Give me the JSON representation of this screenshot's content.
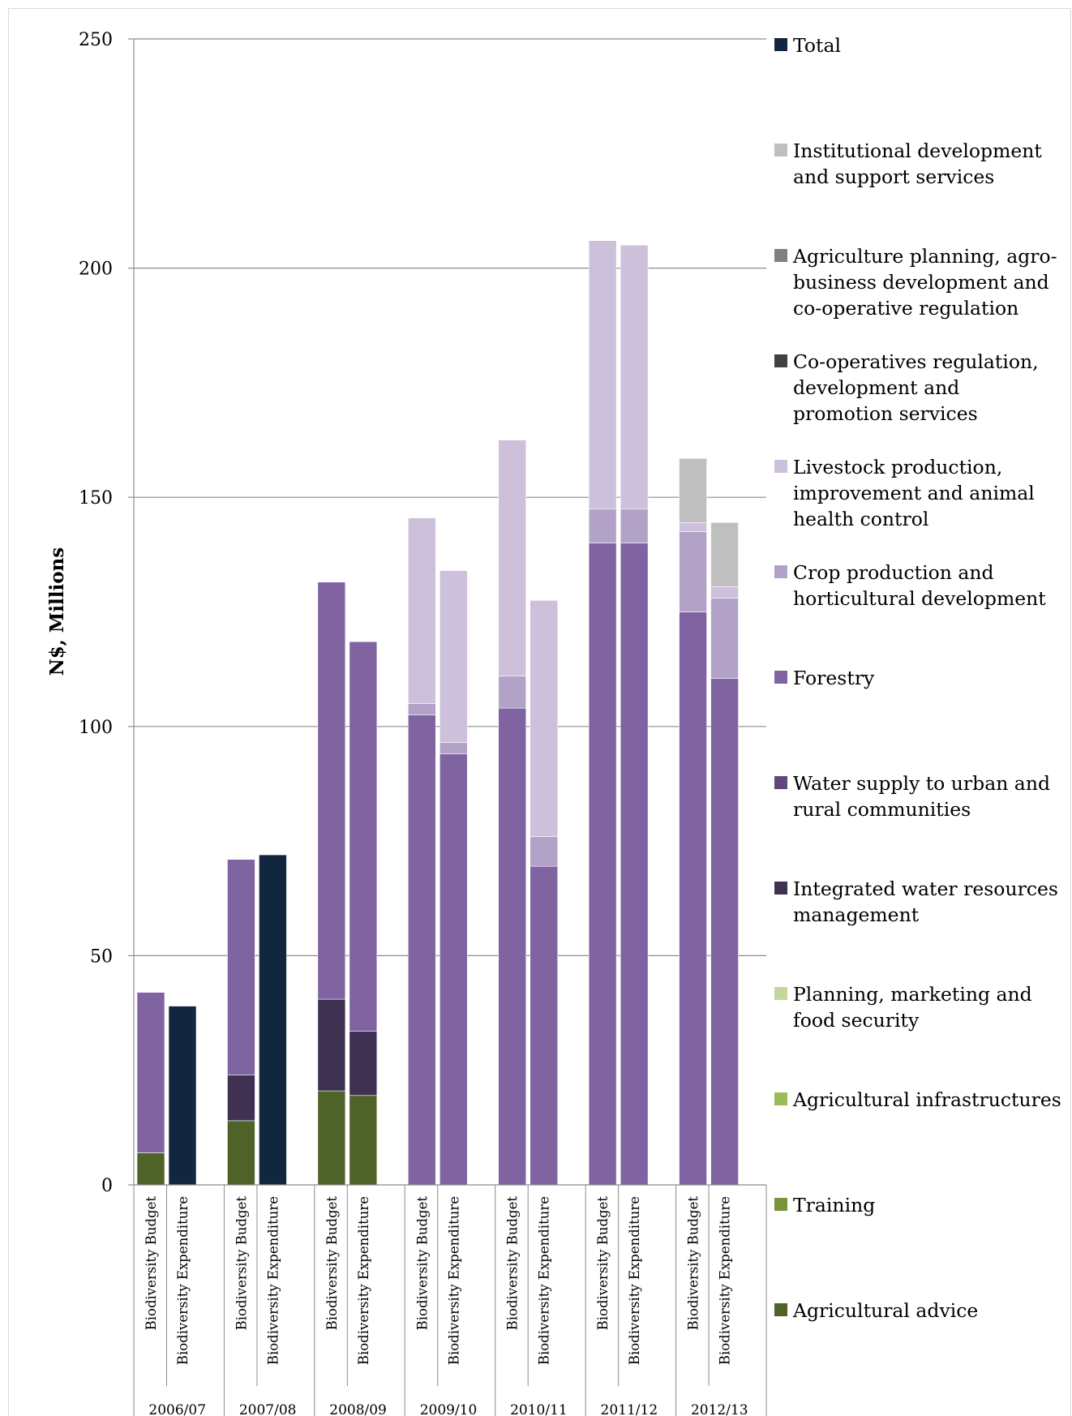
{
  "chart_data": {
    "type": "bar",
    "stacked": true,
    "ylabel": "N$, Millions",
    "ylim": [
      0,
      250
    ],
    "yticks": [
      0,
      50,
      100,
      150,
      200,
      250
    ],
    "grid": true,
    "legend_position": "right",
    "groups": [
      "2006/07",
      "2007/08",
      "2008/09",
      "2009/10",
      "2010/11",
      "2011/12",
      "2012/13"
    ],
    "categories": [
      "Biodiversity Budget",
      "Biodiversity Expenditure"
    ],
    "series": [
      {
        "name": "Total",
        "color": "#13263f",
        "values": [
          [
            0,
            39
          ],
          [
            0,
            72
          ],
          [
            0,
            0
          ],
          [
            0,
            0
          ],
          [
            0,
            0
          ],
          [
            0,
            0
          ],
          [
            0,
            0
          ]
        ]
      },
      {
        "name": "Institutional development and support services",
        "color": "#bfbfbf",
        "values": [
          [
            0,
            0
          ],
          [
            0,
            0
          ],
          [
            0,
            0
          ],
          [
            0,
            0
          ],
          [
            0,
            0
          ],
          [
            0,
            0
          ],
          [
            14,
            14
          ]
        ]
      },
      {
        "name": "Agriculture planning, agro-business development and co-operative regulation",
        "color": "#808080",
        "values": [
          [
            0,
            0
          ],
          [
            0,
            0
          ],
          [
            0,
            0
          ],
          [
            0,
            0
          ],
          [
            0,
            0
          ],
          [
            0,
            0
          ],
          [
            0,
            0
          ]
        ]
      },
      {
        "name": "Co-operatives regulation, development and promotion services",
        "color": "#404040",
        "values": [
          [
            0,
            0
          ],
          [
            0,
            0
          ],
          [
            0,
            0
          ],
          [
            0,
            0
          ],
          [
            0,
            0
          ],
          [
            0,
            0
          ],
          [
            0,
            0
          ]
        ]
      },
      {
        "name": "Livestock production, improvement and animal health control",
        "color": "#ccc0da",
        "values": [
          [
            0,
            0
          ],
          [
            0,
            0
          ],
          [
            0,
            0
          ],
          [
            40.5,
            37.5
          ],
          [
            51.5,
            51.5
          ],
          [
            58.5,
            57.5
          ],
          [
            2,
            2.5
          ]
        ]
      },
      {
        "name": "Crop production and horticultural development",
        "color": "#b3a2c7",
        "values": [
          [
            0,
            0
          ],
          [
            0,
            0
          ],
          [
            0,
            0
          ],
          [
            2.5,
            2.5
          ],
          [
            7,
            6.5
          ],
          [
            7.5,
            7.5
          ],
          [
            17.5,
            17.5
          ]
        ]
      },
      {
        "name": "Forestry",
        "color": "#8064a2",
        "values": [
          [
            35,
            0
          ],
          [
            47,
            0
          ],
          [
            91,
            85
          ],
          [
            102.5,
            94
          ],
          [
            104,
            69.5
          ],
          [
            140,
            140
          ],
          [
            125,
            110.5
          ]
        ]
      },
      {
        "name": "Water supply to urban and rural communities",
        "color": "#5f497a",
        "values": [
          [
            0,
            0
          ],
          [
            0,
            0
          ],
          [
            0,
            0
          ],
          [
            0,
            0
          ],
          [
            0,
            0
          ],
          [
            0,
            0
          ],
          [
            0,
            0
          ]
        ]
      },
      {
        "name": "Integrated water resources management",
        "color": "#3f3151",
        "values": [
          [
            0,
            0
          ],
          [
            10,
            0
          ],
          [
            20,
            14
          ],
          [
            0,
            0
          ],
          [
            0,
            0
          ],
          [
            0,
            0
          ],
          [
            0,
            0
          ]
        ]
      },
      {
        "name": "Planning, marketing and food security",
        "color": "#c3d69b",
        "values": [
          [
            0,
            0
          ],
          [
            0,
            0
          ],
          [
            0,
            0
          ],
          [
            0,
            0
          ],
          [
            0,
            0
          ],
          [
            0,
            0
          ],
          [
            0,
            0
          ]
        ]
      },
      {
        "name": "Agricultural infrastructures",
        "color": "#9bbb59",
        "values": [
          [
            0,
            0
          ],
          [
            0,
            0
          ],
          [
            0,
            0
          ],
          [
            0,
            0
          ],
          [
            0,
            0
          ],
          [
            0,
            0
          ],
          [
            0,
            0
          ]
        ]
      },
      {
        "name": "Training",
        "color": "#77933c",
        "values": [
          [
            0,
            0
          ],
          [
            0,
            0
          ],
          [
            0,
            0
          ],
          [
            0,
            0
          ],
          [
            0,
            0
          ],
          [
            0,
            0
          ],
          [
            0,
            0
          ]
        ]
      },
      {
        "name": "Agricultural advice",
        "color": "#4f6228",
        "values": [
          [
            7,
            0
          ],
          [
            14,
            0
          ],
          [
            20.5,
            19.5
          ],
          [
            0,
            0
          ],
          [
            0,
            0
          ],
          [
            0,
            0
          ],
          [
            0,
            0
          ]
        ]
      }
    ],
    "legend": [
      {
        "lines": [
          "Total"
        ],
        "color": "#13263f"
      },
      {
        "lines": [
          "Institutional development",
          "and support services"
        ],
        "color": "#bfbfbf"
      },
      {
        "lines": [
          "Agriculture planning, agro-",
          "business development and",
          "co-operative regulation"
        ],
        "color": "#808080"
      },
      {
        "lines": [
          "Co-operatives regulation,",
          "development and",
          "promotion services"
        ],
        "color": "#404040"
      },
      {
        "lines": [
          "Livestock production,",
          "improvement and animal",
          "health control"
        ],
        "color": "#ccc0da"
      },
      {
        "lines": [
          "Crop production and",
          "horticultural development"
        ],
        "color": "#b3a2c7"
      },
      {
        "lines": [
          "Forestry"
        ],
        "color": "#8064a2"
      },
      {
        "lines": [
          "Water supply to urban and",
          "rural communities"
        ],
        "color": "#5f497a"
      },
      {
        "lines": [
          "Integrated water resources",
          "management"
        ],
        "color": "#3f3151"
      },
      {
        "lines": [
          "Planning, marketing and",
          "food security"
        ],
        "color": "#c3d69b"
      },
      {
        "lines": [
          "Agricultural infrastructures"
        ],
        "color": "#9bbb59"
      },
      {
        "lines": [
          "Training"
        ],
        "color": "#77933c"
      },
      {
        "lines": [
          "Agricultural advice"
        ],
        "color": "#4f6228"
      }
    ]
  }
}
